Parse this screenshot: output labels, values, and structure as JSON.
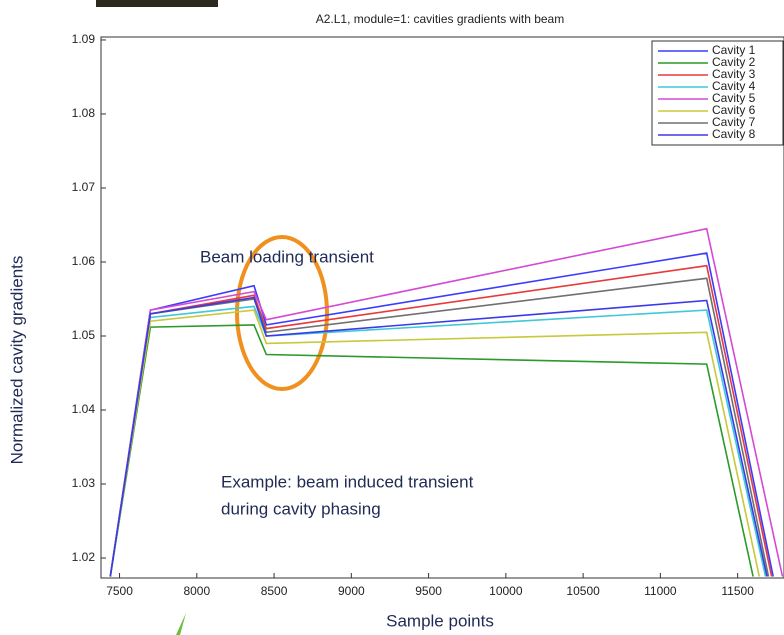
{
  "chart_data": {
    "type": "line",
    "title": "A2.L1, module=1: cavities gradients with beam",
    "x_label": "Sample points",
    "y_label": "Normalized cavity gradients",
    "annotations": [
      "Beam loading transient",
      "Example: beam induced transient",
      "during cavity phasing"
    ],
    "xlim": [
      7380,
      11800
    ],
    "ylim": [
      1.0173,
      1.0904
    ],
    "xticks": [
      7500,
      8000,
      8500,
      9000,
      9500,
      10000,
      10500,
      11000,
      11500
    ],
    "yticks": [
      1.02,
      1.03,
      1.04,
      1.05,
      1.06,
      1.07,
      1.08,
      1.09
    ],
    "legend": "upper right",
    "series": [
      {
        "name": "Cavity 1",
        "color": "#3b3bff",
        "x": [
          7440,
          7700,
          8370,
          8450,
          11300,
          11730
        ],
        "values": [
          1.0175,
          1.0535,
          1.0568,
          1.0515,
          1.0612,
          1.0175
        ]
      },
      {
        "name": "Cavity 2",
        "color": "#2a9a2a",
        "x": [
          7440,
          7700,
          8370,
          8450,
          11300,
          11600
        ],
        "values": [
          1.0175,
          1.0512,
          1.0515,
          1.0475,
          1.0462,
          1.0175
        ]
      },
      {
        "name": "Cavity 3",
        "color": "#e83a3a",
        "x": [
          7440,
          7700,
          8370,
          8450,
          11300,
          11720
        ],
        "values": [
          1.0175,
          1.053,
          1.0555,
          1.051,
          1.0595,
          1.0175
        ]
      },
      {
        "name": "Cavity 4",
        "color": "#3fc8d8",
        "x": [
          7440,
          7700,
          8370,
          8450,
          11300,
          11680
        ],
        "values": [
          1.0175,
          1.0525,
          1.054,
          1.05,
          1.0535,
          1.0175
        ]
      },
      {
        "name": "Cavity 5",
        "color": "#d44ad4",
        "x": [
          7440,
          7700,
          8370,
          8450,
          11300,
          11790
        ],
        "values": [
          1.0175,
          1.0535,
          1.056,
          1.0522,
          1.0645,
          1.0175
        ]
      },
      {
        "name": "Cavity 6",
        "color": "#c8c83a",
        "x": [
          7440,
          7700,
          8370,
          8450,
          11300,
          11640
        ],
        "values": [
          1.0175,
          1.052,
          1.0535,
          1.049,
          1.0505,
          1.0175
        ]
      },
      {
        "name": "Cavity 7",
        "color": "#707070",
        "x": [
          7440,
          7700,
          8370,
          8450,
          11300,
          11700
        ],
        "values": [
          1.0175,
          1.053,
          1.055,
          1.0505,
          1.0578,
          1.0175
        ]
      },
      {
        "name": "Cavity 8",
        "color": "#3a3ae8",
        "x": [
          7440,
          7700,
          8370,
          8450,
          11300,
          11690
        ],
        "values": [
          1.0175,
          1.053,
          1.0552,
          1.05,
          1.0548,
          1.0175
        ]
      }
    ]
  }
}
